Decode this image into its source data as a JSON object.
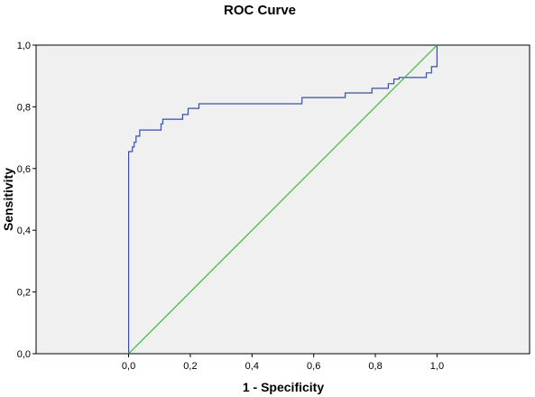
{
  "chart_data": {
    "type": "line",
    "title": "ROC Curve",
    "xlabel": "1 - Specificity",
    "ylabel": "Sensitivity",
    "xlim": [
      -0.3,
      1.3
    ],
    "ylim": [
      0,
      1
    ],
    "x_ticks": [
      {
        "value": 0.0,
        "label": "0,0"
      },
      {
        "value": 0.2,
        "label": "0,2"
      },
      {
        "value": 0.4,
        "label": "0,4"
      },
      {
        "value": 0.6,
        "label": "0,6"
      },
      {
        "value": 0.8,
        "label": "0,8"
      },
      {
        "value": 1.0,
        "label": "1,0"
      }
    ],
    "y_ticks": [
      {
        "value": 0.0,
        "label": "0,0"
      },
      {
        "value": 0.2,
        "label": "0,2"
      },
      {
        "value": 0.4,
        "label": "0,4"
      },
      {
        "value": 0.6,
        "label": "0,6"
      },
      {
        "value": 0.8,
        "label": "0,8"
      },
      {
        "value": 1.0,
        "label": "1,0"
      }
    ],
    "grid": false,
    "background_color": "#f0f0f0",
    "series": [
      {
        "color": "#3b4fa0",
        "step": true,
        "x": [
          0.0,
          0.0,
          0.012,
          0.012,
          0.018,
          0.018,
          0.024,
          0.024,
          0.036,
          0.036,
          0.105,
          0.105,
          0.111,
          0.111,
          0.175,
          0.175,
          0.193,
          0.193,
          0.228,
          0.228,
          0.562,
          0.562,
          0.702,
          0.702,
          0.789,
          0.789,
          0.842,
          0.842,
          0.86,
          0.86,
          0.877,
          0.877,
          0.965,
          0.965,
          0.982,
          0.982,
          1.0,
          1.0
        ],
        "y": [
          0.0,
          0.655,
          0.655,
          0.67,
          0.67,
          0.685,
          0.685,
          0.705,
          0.705,
          0.725,
          0.725,
          0.745,
          0.745,
          0.76,
          0.76,
          0.775,
          0.775,
          0.795,
          0.795,
          0.81,
          0.81,
          0.83,
          0.83,
          0.845,
          0.845,
          0.86,
          0.86,
          0.875,
          0.875,
          0.89,
          0.89,
          0.895,
          0.895,
          0.91,
          0.91,
          0.93,
          0.93,
          1.0
        ]
      },
      {
        "color": "#3cb83c",
        "x": [
          0.0,
          1.0
        ],
        "y": [
          0.0,
          1.0
        ]
      }
    ]
  }
}
